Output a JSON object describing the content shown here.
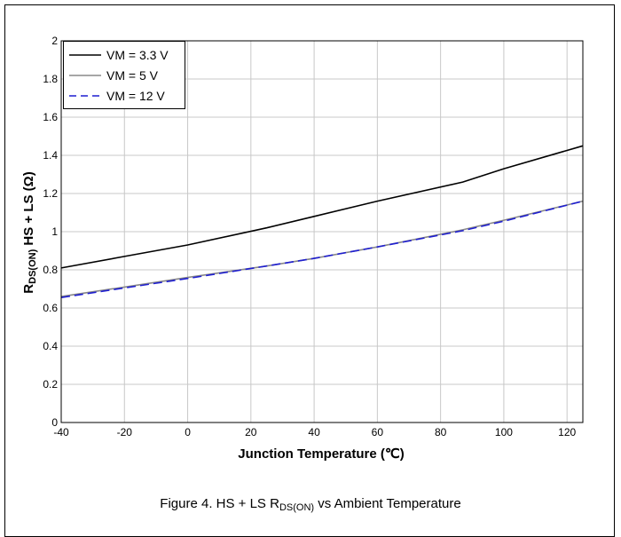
{
  "caption": {
    "prefix": "Figure 4. HS + LS R",
    "sub": "DS(ON)",
    "suffix": " vs Ambient Temperature"
  },
  "chart_data": {
    "type": "line",
    "xlabel": "Junction Temperature (℃)",
    "ylabel_main": "R",
    "ylabel_sub": "DS(ON)",
    "ylabel_rest": " HS + LS (Ω)",
    "xlim": [
      -40,
      125
    ],
    "ylim": [
      0,
      2
    ],
    "x_ticks": [
      -40,
      -20,
      0,
      20,
      40,
      60,
      80,
      100,
      120
    ],
    "y_ticks": [
      "0",
      "0.2",
      "0.4",
      "0.6",
      "0.8",
      "1",
      "1.2",
      "1.4",
      "1.6",
      "1.8",
      "2"
    ],
    "grid": true,
    "legend_position": "top-left",
    "x": [
      -40,
      -20,
      0,
      25,
      40,
      60,
      87,
      100,
      125
    ],
    "series": [
      {
        "name": "VM = 3.3 V",
        "color": "#000000",
        "dash": "solid",
        "values": [
          0.81,
          0.87,
          0.93,
          1.02,
          1.08,
          1.16,
          1.26,
          1.33,
          1.45
        ]
      },
      {
        "name": "VM = 5 V",
        "color": "#888888",
        "dash": "solid",
        "values": [
          0.66,
          0.71,
          0.76,
          0.82,
          0.86,
          0.92,
          1.01,
          1.06,
          1.16
        ]
      },
      {
        "name": "VM = 12 V",
        "color": "#1f1fd0",
        "dash": "dashed",
        "values": [
          0.655,
          0.705,
          0.755,
          0.82,
          0.86,
          0.92,
          1.005,
          1.055,
          1.16
        ]
      }
    ]
  }
}
